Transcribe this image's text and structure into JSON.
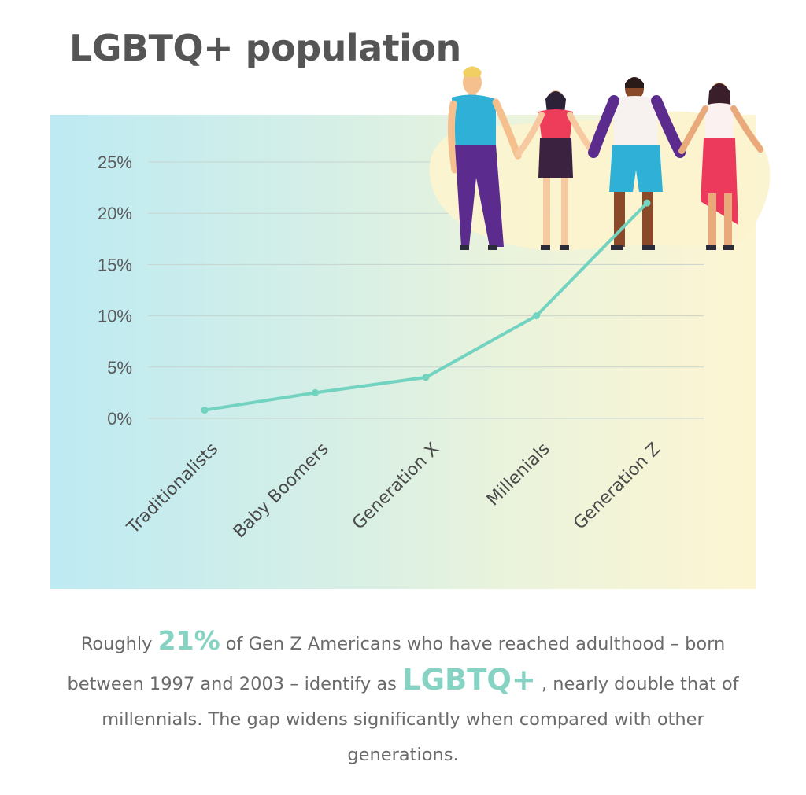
{
  "title": "LGBTQ+ population",
  "caption": {
    "part1": "Roughly ",
    "highlight1": "21%",
    "part2": " of Gen Z Americans who have reached adulthood – born between 1997 and 2003 – identify as ",
    "highlight2": "LGBTQ+",
    "part3": " , nearly double that of millennials. The gap widens significantly when compared with other generations."
  },
  "colors": {
    "line": "#72d3c0",
    "accent": "#86d3c4",
    "title": "#555555",
    "gridline": "#c7d3cf"
  },
  "illustration": "four people holding hands",
  "chart_data": {
    "type": "line",
    "title": "LGBTQ+ population",
    "xlabel": "",
    "ylabel": "",
    "categories": [
      "Traditionalists",
      "Baby Boomers",
      "Generation X",
      "Millenials",
      "Generation Z"
    ],
    "series": [
      {
        "values": [
          0.8,
          2.5,
          4,
          10,
          21
        ]
      }
    ],
    "ylim": [
      0,
      25
    ],
    "yticks": [
      0,
      5,
      10,
      15,
      20,
      25
    ],
    "ytick_labels": [
      "0%",
      "5%",
      "10%",
      "15%",
      "20%",
      "25%"
    ],
    "grid": true,
    "legend": "none"
  }
}
